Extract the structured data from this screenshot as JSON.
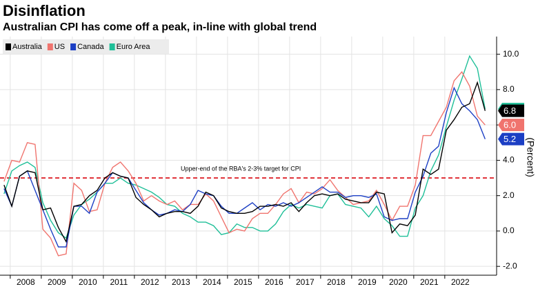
{
  "chart_data": {
    "type": "line",
    "title": "Disinflation",
    "subtitle": "Australian CPI has come off a peak, in-line with global trend",
    "y_label": "(Percent)",
    "x": [
      2007.8,
      2008.05,
      2008.3,
      2008.55,
      2008.8,
      2009.05,
      2009.3,
      2009.55,
      2009.8,
      2010.05,
      2010.3,
      2010.55,
      2010.8,
      2011.05,
      2011.3,
      2011.55,
      2011.8,
      2012.05,
      2012.3,
      2012.55,
      2012.8,
      2013.05,
      2013.3,
      2013.55,
      2013.8,
      2014.05,
      2014.3,
      2014.55,
      2014.8,
      2015.05,
      2015.3,
      2015.55,
      2015.8,
      2016.05,
      2016.3,
      2016.55,
      2016.8,
      2017.05,
      2017.3,
      2017.55,
      2017.8,
      2018.05,
      2018.3,
      2018.55,
      2018.8,
      2019.05,
      2019.3,
      2019.55,
      2019.8,
      2020.05,
      2020.3,
      2020.55,
      2020.8,
      2021.05,
      2021.3,
      2021.55,
      2021.8,
      2022.05,
      2022.3,
      2022.55,
      2022.8,
      2023.05,
      2023.3
    ],
    "series": [
      {
        "name": "Australia",
        "color": "#000000",
        "values": [
          2.6,
          1.4,
          3.1,
          3.4,
          3.3,
          1.2,
          1.3,
          0.2,
          -0.6,
          1.4,
          1.5,
          2.0,
          2.3,
          3.0,
          3.3,
          3.1,
          3.0,
          1.9,
          1.5,
          1.2,
          0.8,
          1.0,
          1.1,
          1.1,
          1.0,
          1.4,
          2.2,
          2.0,
          1.3,
          1.1,
          1.0,
          1.0,
          1.1,
          1.4,
          1.4,
          1.5,
          1.4,
          1.6,
          1.1,
          1.6,
          2.0,
          2.1,
          2.0,
          2.1,
          1.8,
          1.7,
          1.6,
          1.6,
          2.2,
          2.1,
          -0.1,
          0.4,
          0.3,
          0.9,
          3.5,
          3.2,
          3.5,
          5.7,
          6.3,
          7.0,
          7.2,
          8.4,
          6.8
        ],
        "value_labels": [
          null,
          null,
          null,
          null,
          null,
          null,
          null,
          null,
          null,
          null,
          null,
          null,
          null,
          null,
          null,
          null,
          null,
          null,
          null,
          null,
          null,
          null,
          null,
          null,
          null,
          null,
          null,
          null,
          null,
          null,
          null,
          null,
          null,
          null,
          null,
          null,
          null,
          null,
          null,
          null,
          null,
          null,
          null,
          null,
          null,
          null,
          null,
          null,
          null,
          null,
          null,
          null,
          null,
          null,
          null,
          null,
          null,
          null,
          null,
          null,
          null,
          null,
          "6.8"
        ]
      },
      {
        "name": "US",
        "color": "#f0746e",
        "values": [
          2.8,
          4.0,
          3.9,
          5.0,
          4.9,
          0.1,
          -0.4,
          -1.4,
          -1.3,
          2.7,
          2.3,
          1.1,
          1.2,
          2.7,
          3.6,
          3.9,
          3.4,
          2.7,
          1.7,
          2.0,
          1.7,
          1.5,
          1.7,
          1.2,
          1.5,
          1.5,
          2.1,
          1.7,
          0.8,
          -0.1,
          0.1,
          0.0,
          0.7,
          1.0,
          1.0,
          1.5,
          2.1,
          2.4,
          1.6,
          2.2,
          2.1,
          2.4,
          2.9,
          2.3,
          1.9,
          1.5,
          1.6,
          1.7,
          2.3,
          1.5,
          0.6,
          1.4,
          1.4,
          2.6,
          5.4,
          5.4,
          6.2,
          7.0,
          8.5,
          9.0,
          8.2,
          6.5,
          6.0
        ],
        "value_labels": [
          null,
          null,
          null,
          null,
          null,
          null,
          null,
          null,
          null,
          null,
          null,
          null,
          null,
          null,
          null,
          null,
          null,
          null,
          null,
          null,
          null,
          null,
          null,
          null,
          null,
          null,
          null,
          null,
          null,
          null,
          null,
          null,
          null,
          null,
          null,
          null,
          null,
          null,
          null,
          null,
          null,
          null,
          null,
          null,
          null,
          null,
          null,
          null,
          null,
          null,
          null,
          null,
          null,
          null,
          null,
          null,
          null,
          null,
          null,
          null,
          null,
          null,
          "6.0"
        ]
      },
      {
        "name": "Canada",
        "color": "#1c3fc4",
        "values": [
          2.4,
          1.4,
          3.1,
          3.4,
          2.3,
          1.2,
          0.1,
          -0.9,
          -0.9,
          1.4,
          1.4,
          1.0,
          2.2,
          2.7,
          3.3,
          3.1,
          3.0,
          2.3,
          1.6,
          1.2,
          0.9,
          1.0,
          1.2,
          1.1,
          1.5,
          2.3,
          2.1,
          2.0,
          1.4,
          1.0,
          1.0,
          1.3,
          1.6,
          1.2,
          1.5,
          1.4,
          1.6,
          1.4,
          1.6,
          1.9,
          2.2,
          2.5,
          2.2,
          2.2,
          1.9,
          2.0,
          2.0,
          1.9,
          2.1,
          0.8,
          0.6,
          0.7,
          0.7,
          2.2,
          3.1,
          4.4,
          4.8,
          6.7,
          8.1,
          7.2,
          6.8,
          6.3,
          5.2
        ],
        "value_labels": [
          null,
          null,
          null,
          null,
          null,
          null,
          null,
          null,
          null,
          null,
          null,
          null,
          null,
          null,
          null,
          null,
          null,
          null,
          null,
          null,
          null,
          null,
          null,
          null,
          null,
          null,
          null,
          null,
          null,
          null,
          null,
          null,
          null,
          null,
          null,
          null,
          null,
          null,
          null,
          null,
          null,
          null,
          null,
          null,
          null,
          null,
          null,
          null,
          null,
          null,
          null,
          null,
          null,
          null,
          null,
          null,
          null,
          null,
          null,
          null,
          null,
          null,
          "5.2"
        ]
      },
      {
        "name": "Euro Area",
        "color": "#1fbf98",
        "values": [
          2.1,
          3.4,
          3.7,
          3.9,
          3.6,
          1.6,
          0.6,
          -0.1,
          -0.4,
          0.9,
          1.5,
          1.8,
          2.2,
          2.7,
          2.7,
          3.0,
          2.7,
          2.6,
          2.4,
          2.2,
          1.9,
          1.5,
          1.4,
          1.0,
          0.8,
          0.5,
          0.5,
          0.3,
          -0.2,
          -0.1,
          0.4,
          0.2,
          0.2,
          0.0,
          0.0,
          0.4,
          1.1,
          1.5,
          1.3,
          1.5,
          1.4,
          1.3,
          2.0,
          2.1,
          1.5,
          1.4,
          1.3,
          0.8,
          1.4,
          0.7,
          0.3,
          -0.3,
          -0.3,
          1.3,
          2.0,
          3.4,
          4.3,
          5.9,
          7.4,
          8.6,
          9.9,
          9.2,
          6.9
        ]
      }
    ],
    "reference_line": {
      "value": 3,
      "label": "Upper-end of the RBA's 2-3% target for CPI",
      "color": "#e0333a"
    },
    "xlim": [
      2007.67,
      2023.67
    ],
    "xticks": [
      2008,
      2009,
      2010,
      2011,
      2012,
      2013,
      2014,
      2015,
      2016,
      2017,
      2018,
      2019,
      2020,
      2021,
      2022
    ],
    "ylim": [
      -2.5,
      11
    ],
    "yticks": [
      {
        "value": -2,
        "label": "-2.0"
      },
      {
        "value": 0,
        "label": "0.0"
      },
      {
        "value": 2,
        "label": "2.0"
      },
      {
        "value": 4,
        "label": "4.0"
      },
      {
        "value": 6,
        "label": "6.0"
      },
      {
        "value": 8,
        "label": "8.0"
      },
      {
        "value": 10,
        "label": "10.0"
      }
    ],
    "grid": true,
    "legend": "top-left"
  }
}
